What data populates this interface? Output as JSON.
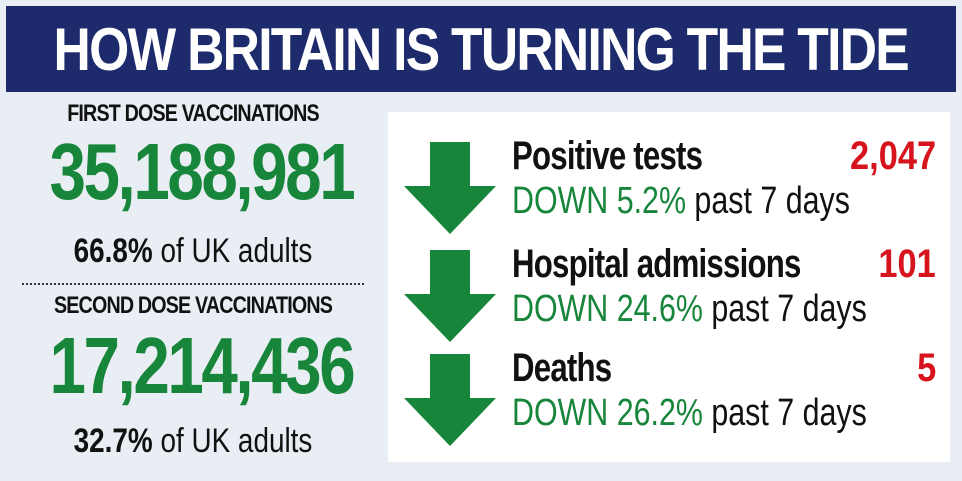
{
  "header": {
    "title": "HOW BRITAIN IS TURNING THE TIDE"
  },
  "colors": {
    "navy": "#1d2a6b",
    "green": "#17853a",
    "red": "#d7141d",
    "background": "#e8eef3"
  },
  "vaccinations": [
    {
      "label": "FIRST DOSE VACCINATIONS",
      "number": "35,188,981",
      "pct": "66.8%",
      "pct_suffix": " of UK adults"
    },
    {
      "label": "SECOND DOSE VACCINATIONS",
      "number": "17,214,436",
      "pct": "32.7%",
      "pct_suffix": " of UK adults"
    }
  ],
  "metrics": [
    {
      "name": "Positive tests",
      "value": "2,047",
      "change": "DOWN 5.2%",
      "period": " past 7 days",
      "arrow_icon": "down-arrow-icon"
    },
    {
      "name": "Hospital admissions",
      "value": "101",
      "change": "DOWN 24.6%",
      "period": " past 7 days",
      "arrow_icon": "down-arrow-icon"
    },
    {
      "name": "Deaths",
      "value": "5",
      "change": "DOWN 26.2%",
      "period": " past 7 days",
      "arrow_icon": "down-arrow-icon"
    }
  ]
}
